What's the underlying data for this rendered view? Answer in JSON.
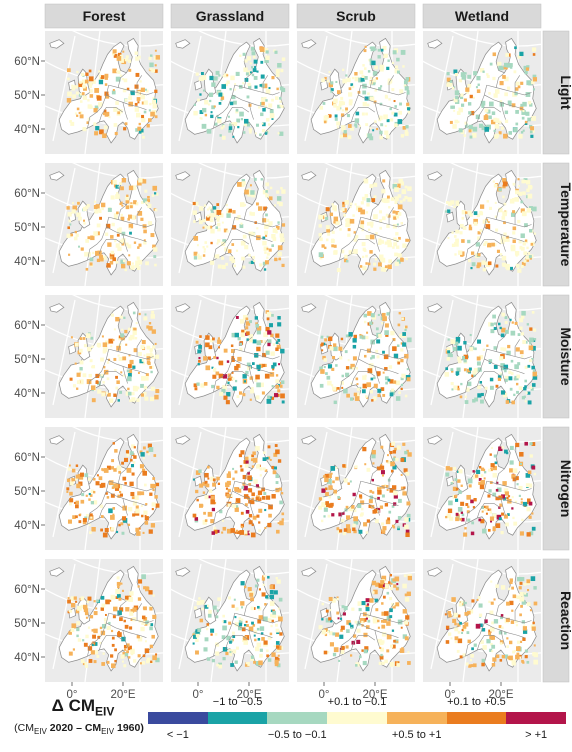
{
  "columns": [
    "Forest",
    "Grassland",
    "Scrub",
    "Wetland"
  ],
  "rows": [
    "Light",
    "Temperature",
    "Moisture",
    "Nitrogen",
    "Reaction"
  ],
  "lat_labels": [
    "60°N",
    "50°N",
    "40°N"
  ],
  "lon_labels": [
    "0°",
    "20°E"
  ],
  "legend": {
    "title_main": "Δ CM",
    "title_sub": "EIV",
    "subtitle": {
      "open": "(CM",
      "sub1": "EIV",
      "mid": " 2020 – CM",
      "sub2": "EIV",
      "end": " 1960)"
    },
    "classes": [
      {
        "label": "< −1",
        "color": "#3a4a9e",
        "pos": "below"
      },
      {
        "label": "−1 to −0.5",
        "color": "#1aa3a6",
        "pos": "above"
      },
      {
        "label": "−0.5 to −0.1",
        "color": "#a6d8c0",
        "pos": "below"
      },
      {
        "label": "+0.1 to −0.1",
        "color": "#fffbd0",
        "pos": "above"
      },
      {
        "label": "+0.5 to +1",
        "color": "#f6b25a",
        "pos": "below"
      },
      {
        "label": "+0.1 to +0.5",
        "color": "#ea7c1f",
        "pos": "above"
      },
      {
        "label": "> +1",
        "color": "#b3154a",
        "pos": "below"
      }
    ]
  },
  "colors": {
    "panel_bg": "#ebebeb",
    "strip_bg": "#d9d9d9",
    "land": "#ffffff",
    "border": "#8c8c8c",
    "grid": "#ffffff"
  },
  "panel_mix": {
    "Forest": {
      "Light": [
        0,
        0.03,
        0.08,
        0.45,
        0.32,
        0.12,
        0
      ],
      "Temperature": [
        0,
        0.02,
        0.05,
        0.55,
        0.33,
        0.05,
        0
      ],
      "Moisture": [
        0,
        0.03,
        0.1,
        0.5,
        0.3,
        0.07,
        0
      ],
      "Nitrogen": [
        0,
        0.04,
        0.05,
        0.18,
        0.4,
        0.3,
        0.03
      ],
      "Reaction": [
        0,
        0.03,
        0.05,
        0.35,
        0.4,
        0.17,
        0
      ]
    },
    "Grassland": {
      "Light": [
        0,
        0.15,
        0.4,
        0.35,
        0.08,
        0.02,
        0
      ],
      "Temperature": [
        0,
        0.02,
        0.1,
        0.65,
        0.2,
        0.03,
        0
      ],
      "Moisture": [
        0,
        0.15,
        0.12,
        0.18,
        0.25,
        0.25,
        0.05
      ],
      "Nitrogen": [
        0,
        0.06,
        0.06,
        0.15,
        0.35,
        0.3,
        0.08
      ],
      "Reaction": [
        0,
        0.1,
        0.25,
        0.35,
        0.22,
        0.08,
        0
      ]
    },
    "Scrub": {
      "Light": [
        0,
        0.04,
        0.3,
        0.45,
        0.18,
        0.03,
        0
      ],
      "Temperature": [
        0,
        0.02,
        0.06,
        0.7,
        0.2,
        0.02,
        0
      ],
      "Moisture": [
        0,
        0.12,
        0.2,
        0.3,
        0.25,
        0.13,
        0
      ],
      "Nitrogen": [
        0,
        0.04,
        0.08,
        0.22,
        0.32,
        0.26,
        0.08
      ],
      "Reaction": [
        0,
        0.05,
        0.18,
        0.3,
        0.3,
        0.12,
        0.05
      ]
    },
    "Wetland": {
      "Light": [
        0,
        0.06,
        0.4,
        0.38,
        0.14,
        0.02,
        0
      ],
      "Temperature": [
        0,
        0.03,
        0.08,
        0.62,
        0.24,
        0.03,
        0
      ],
      "Moisture": [
        0,
        0.25,
        0.35,
        0.25,
        0.1,
        0.05,
        0
      ],
      "Nitrogen": [
        0.01,
        0.1,
        0.12,
        0.22,
        0.25,
        0.2,
        0.1
      ],
      "Reaction": [
        0,
        0.05,
        0.15,
        0.35,
        0.3,
        0.13,
        0.02
      ]
    }
  }
}
